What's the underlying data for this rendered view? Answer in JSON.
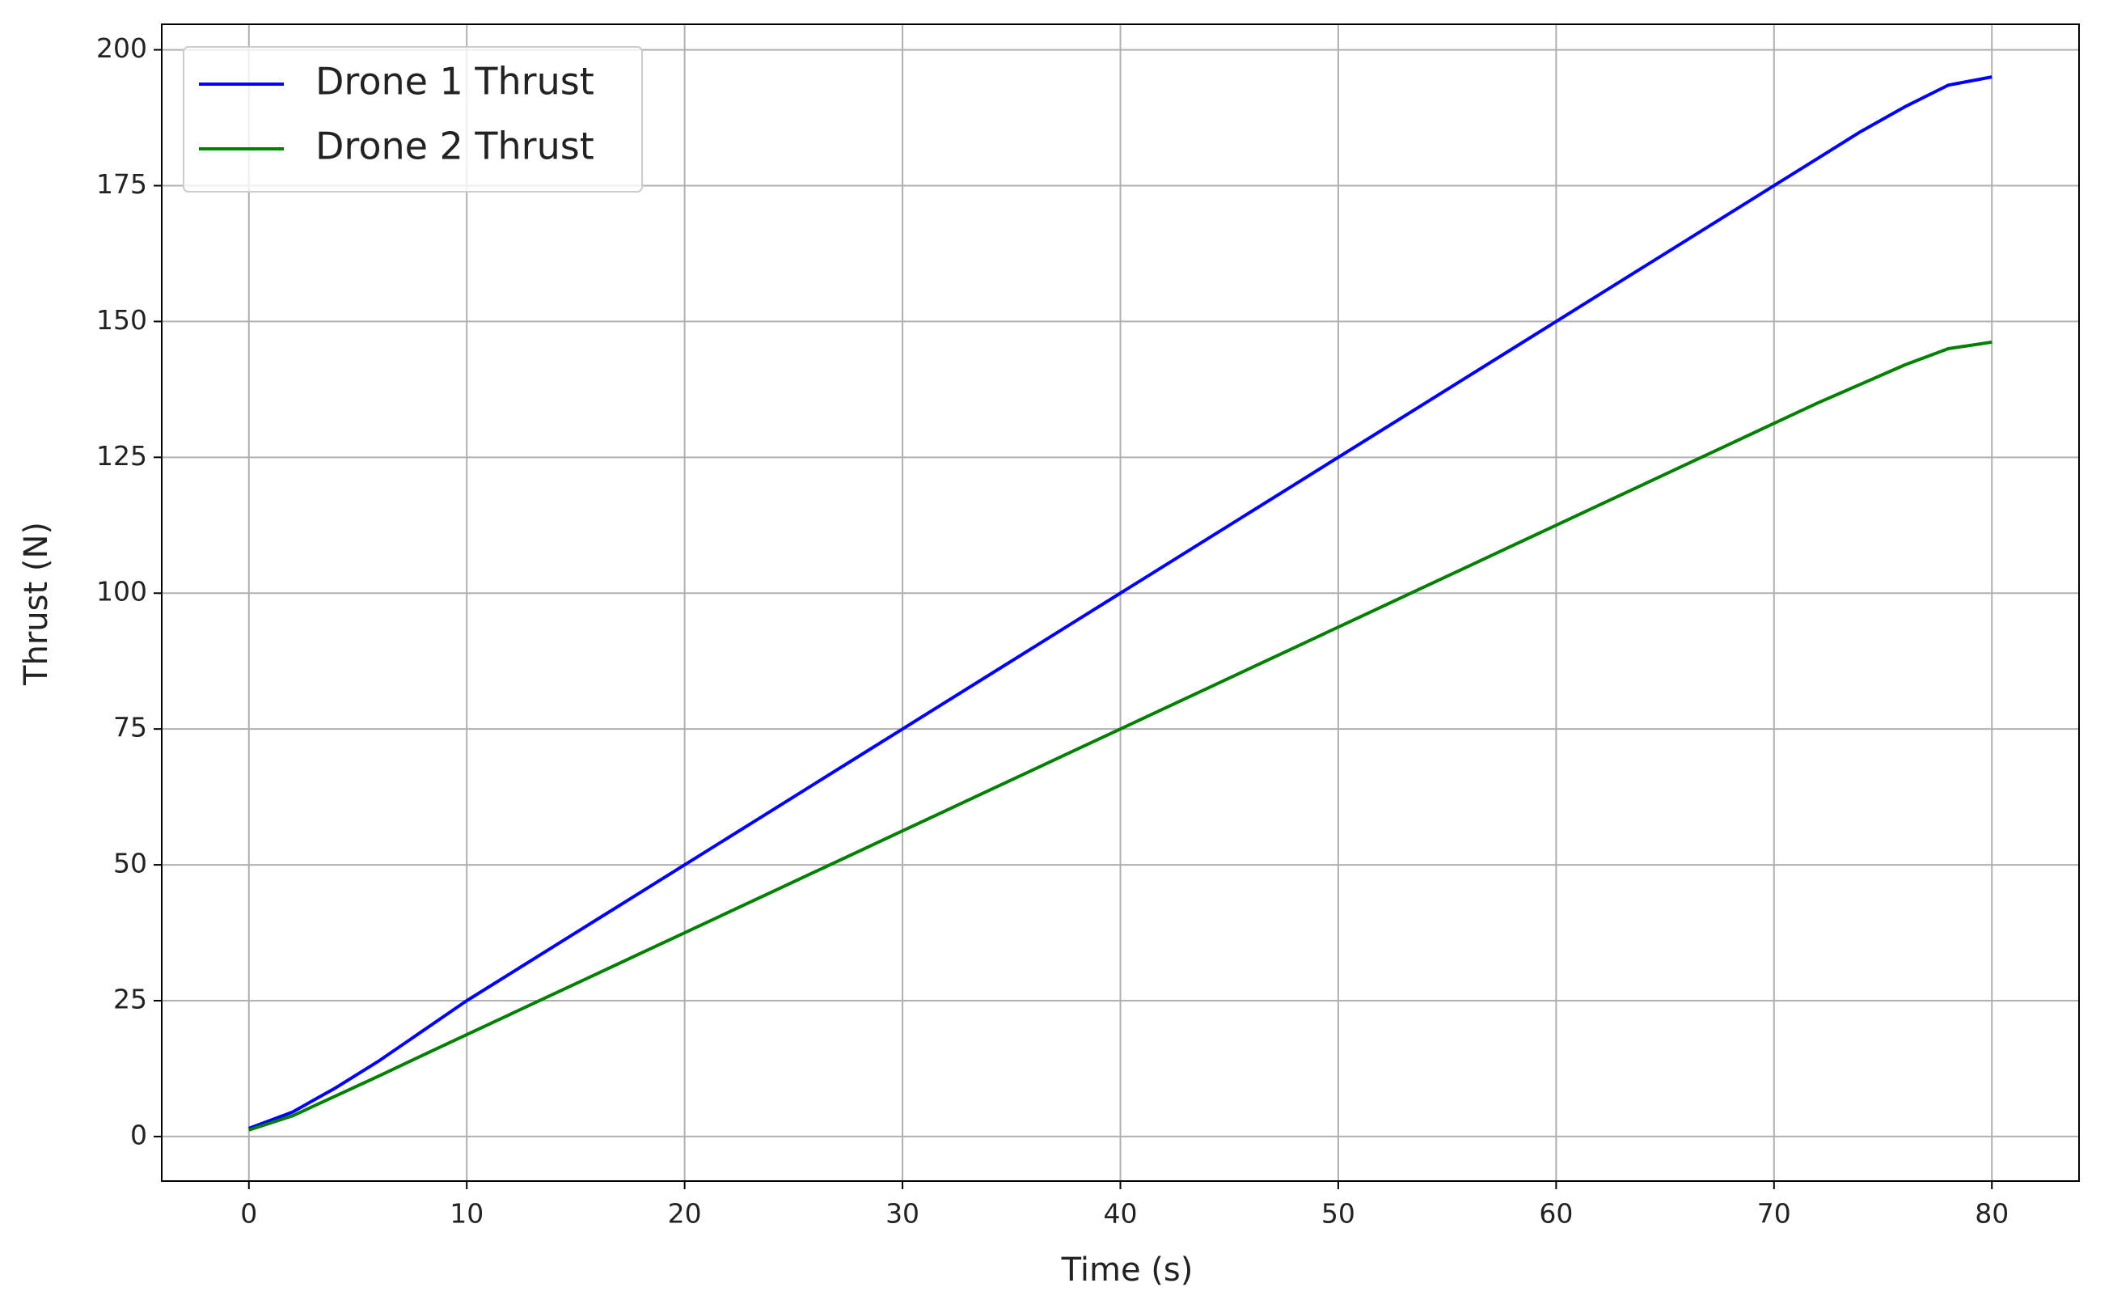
{
  "chart_data": {
    "type": "line",
    "xlabel": "Time (s)",
    "ylabel": "Thrust (N)",
    "x": [
      0,
      2,
      4,
      6,
      8,
      10,
      12,
      14,
      16,
      18,
      20,
      22,
      24,
      26,
      28,
      30,
      32,
      34,
      36,
      38,
      40,
      42,
      44,
      46,
      48,
      50,
      52,
      54,
      56,
      58,
      60,
      62,
      64,
      66,
      68,
      70,
      72,
      74,
      76,
      78,
      80
    ],
    "series": [
      {
        "name": "Drone 1 Thrust",
        "color": "#0000ff",
        "values": [
          1.5,
          4.5,
          9,
          14,
          19.5,
          25,
          30,
          35,
          40,
          45,
          50,
          55,
          60,
          65,
          70,
          75,
          80,
          85,
          90,
          95,
          100,
          105,
          110,
          115,
          120,
          125,
          130,
          135,
          140,
          145,
          150,
          155,
          160,
          165,
          170,
          175,
          180,
          185,
          189.5,
          193.5,
          195
        ]
      },
      {
        "name": "Drone 2 Thrust",
        "color": "#008000",
        "values": [
          1.2,
          3.8,
          7.5,
          11.2,
          15,
          18.75,
          22.5,
          26.25,
          30,
          33.75,
          37.5,
          41.25,
          45,
          48.75,
          52.5,
          56.25,
          60,
          63.75,
          67.5,
          71.25,
          75,
          78.75,
          82.5,
          86.25,
          90,
          93.75,
          97.5,
          101.25,
          105,
          108.75,
          112.5,
          116.25,
          120,
          123.75,
          127.5,
          131.25,
          135,
          138.5,
          142,
          145,
          146.2
        ]
      }
    ],
    "xlim": [
      -4,
      84
    ],
    "xticks": [
      0,
      10,
      20,
      30,
      40,
      50,
      60,
      70,
      80
    ],
    "ylim": [
      -8.2,
      204.7
    ],
    "yticks": [
      0,
      25,
      50,
      75,
      100,
      125,
      150,
      175,
      200
    ],
    "grid": true,
    "legend": "upper left"
  }
}
